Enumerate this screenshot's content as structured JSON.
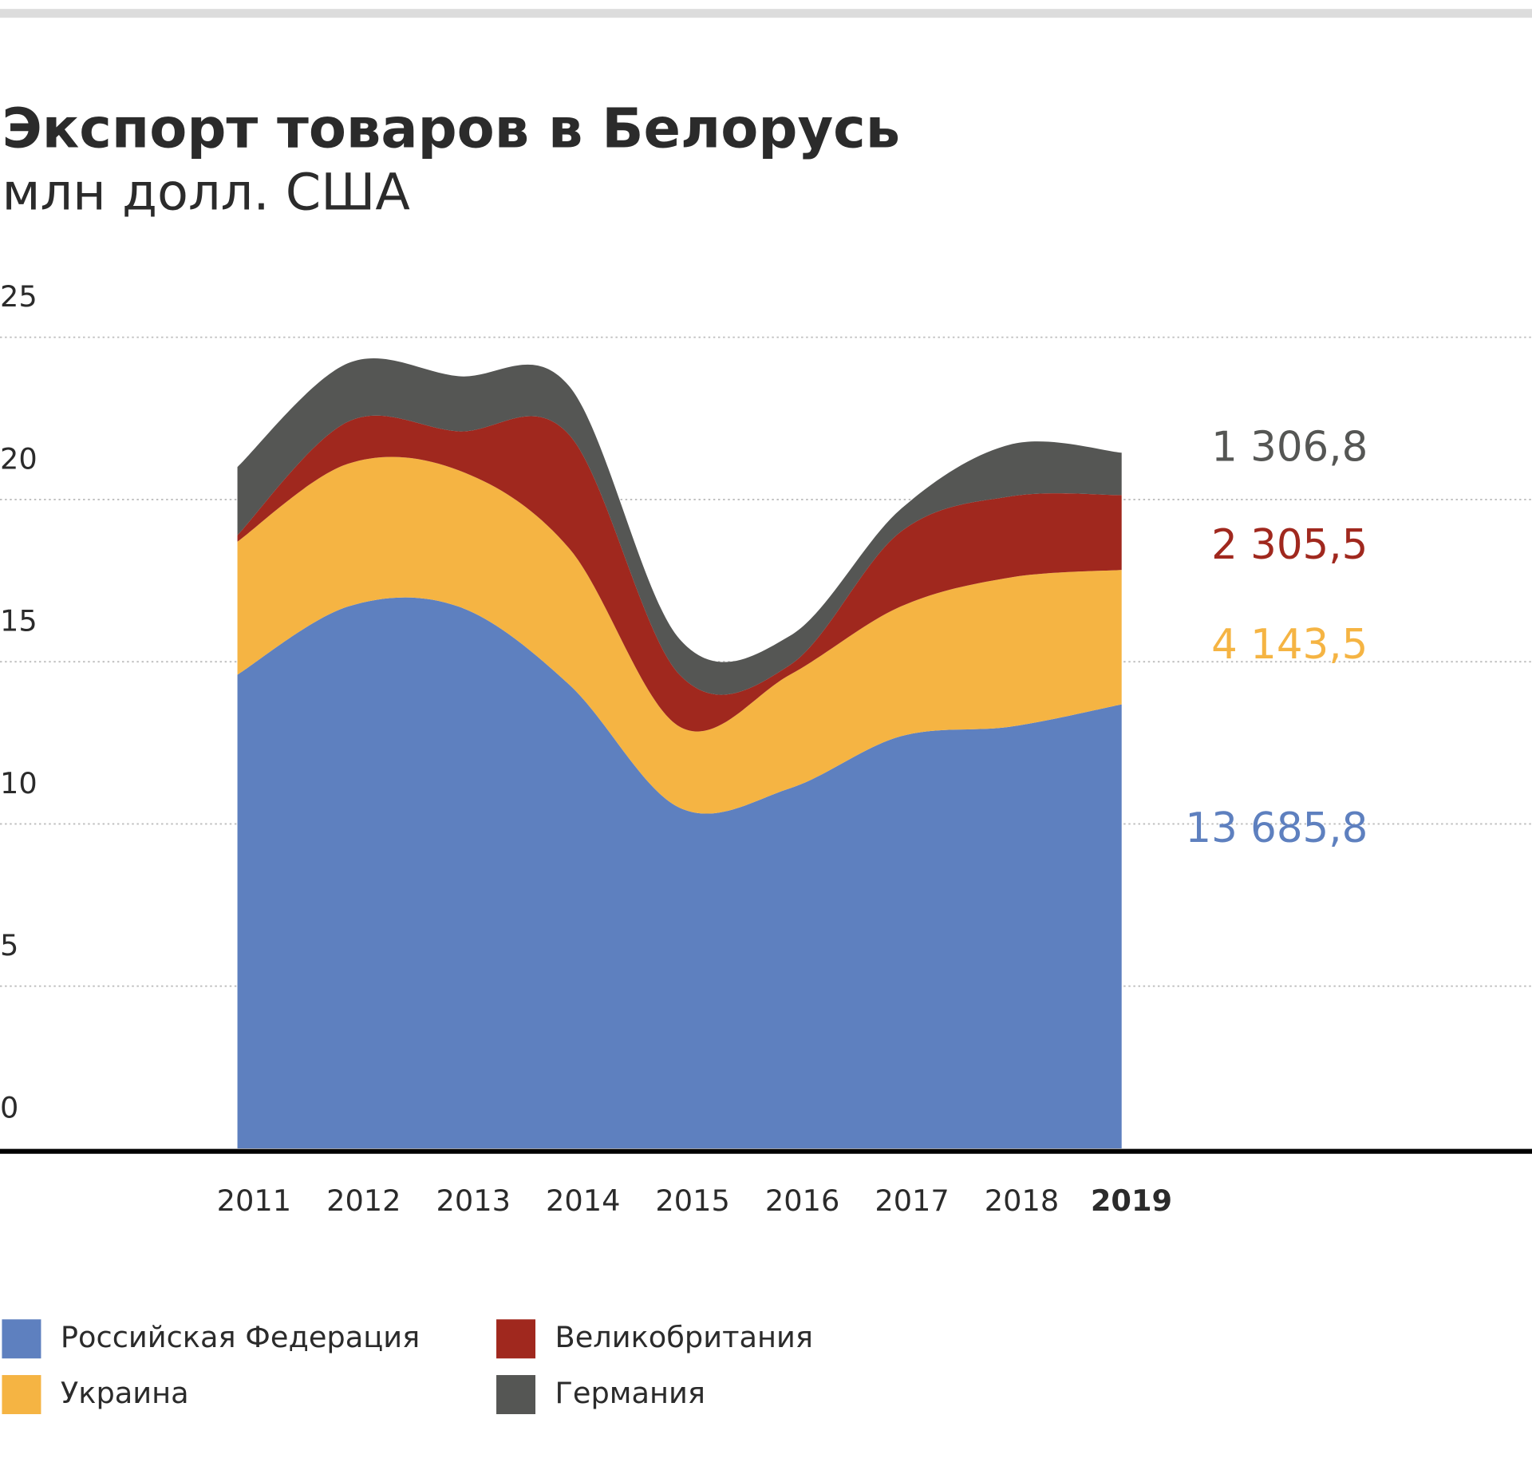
{
  "chart_data": {
    "type": "stacked_area",
    "title": "Экспорт товаров в Белорусь",
    "subtitle": "млн долл. США",
    "categories": [
      "2011",
      "2012",
      "2013",
      "2014",
      "2015",
      "2016",
      "2017",
      "2018",
      "2019"
    ],
    "highlight": "2019",
    "ylim": [
      0,
      25
    ],
    "yticks": [
      0,
      5,
      10,
      15,
      20,
      25
    ],
    "grid": true,
    "series": [
      {
        "name": "Российская Федерация",
        "color": "#5e80bf",
        "values": [
          14.6,
          16.7,
          16.7,
          14.3,
          10.5,
          11.1,
          12.7,
          13.0,
          13.6858
        ],
        "value_labels": [
          null,
          null,
          null,
          null,
          null,
          null,
          null,
          null,
          "13 685,8"
        ]
      },
      {
        "name": "Украина",
        "color": "#f5b443",
        "values": [
          4.1,
          4.4,
          4.2,
          4.2,
          2.5,
          3.5,
          4.0,
          4.6,
          4.1435
        ],
        "value_labels": [
          null,
          null,
          null,
          null,
          null,
          null,
          null,
          null,
          "4 143,5"
        ]
      },
      {
        "name": "Великобритания",
        "color": "#a0281e",
        "values": [
          0.2,
          1.3,
          1.2,
          3.5,
          1.6,
          0.3,
          2.3,
          2.5,
          2.3055
        ],
        "value_labels": [
          null,
          null,
          null,
          null,
          null,
          null,
          null,
          null,
          "2 305,5"
        ]
      },
      {
        "name": "Германия",
        "color": "#555654",
        "values": [
          2.1,
          1.8,
          1.7,
          1.5,
          1.1,
          0.9,
          0.7,
          1.6,
          1.3068
        ],
        "value_labels": [
          null,
          null,
          null,
          null,
          null,
          null,
          null,
          null,
          "1 306,8"
        ]
      }
    ]
  }
}
